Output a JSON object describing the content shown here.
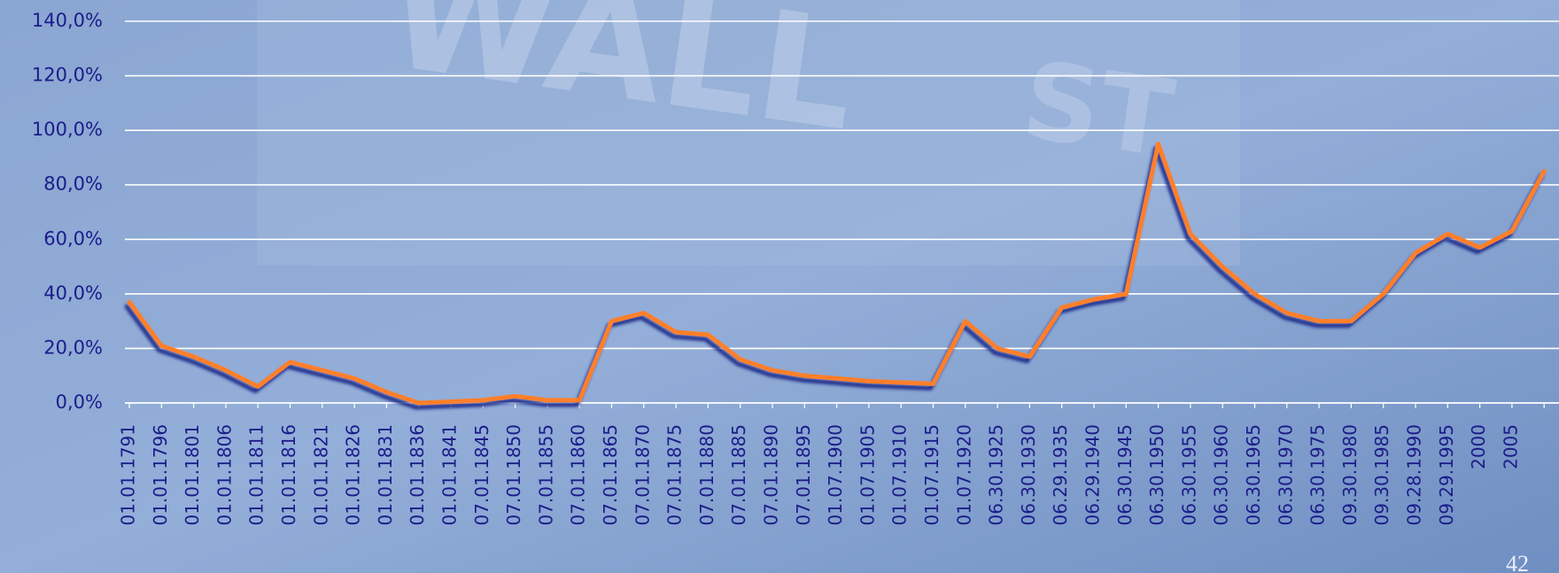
{
  "chart_data": {
    "type": "line",
    "categories": [
      "01.01.1791",
      "01.01.1796",
      "01.01.1801",
      "01.01.1806",
      "01.01.1811",
      "01.01.1816",
      "01.01.1821",
      "01.01.1826",
      "01.01.1831",
      "01.01.1836",
      "01.01.1841",
      "07.01.1845",
      "07.01.1850",
      "07.01.1855",
      "07.01.1860",
      "07.01.1865",
      "07.01.1870",
      "07.01.1875",
      "07.01.1880",
      "07.01.1885",
      "07.01.1890",
      "07.01.1895",
      "01.07.1900",
      "01.07.1905",
      "01.07.1910",
      "01.07.1915",
      "01.07.1920",
      "06.30.1925",
      "06.30.1930",
      "06.29.1935",
      "06.29.1940",
      "06.30.1945",
      "06.30.1950",
      "06.30.1955",
      "06.30.1960",
      "06.30.1965",
      "06.30.1970",
      "06.30.1975",
      "09.30.1980",
      "09.30.1985",
      "09.28.1990",
      "09.29.1995",
      "2000",
      "2005",
      null
    ],
    "series": [
      {
        "color": "#ff7f2a",
        "values": [
          37,
          21,
          17,
          12,
          6,
          15,
          12,
          9,
          4,
          0,
          0.5,
          1,
          2.5,
          1,
          1,
          30,
          33,
          26,
          25,
          16,
          12,
          10,
          9,
          8,
          7.5,
          7,
          30,
          20,
          17,
          35,
          38,
          40,
          95,
          62,
          50,
          40,
          33,
          30,
          30,
          40,
          55,
          62,
          57,
          63,
          85
        ]
      }
    ],
    "ylim": [
      0,
      140
    ],
    "yticks": [
      {
        "value": 0,
        "label": "0,0%"
      },
      {
        "value": 20,
        "label": "20,0%"
      },
      {
        "value": 40,
        "label": "40,0%"
      },
      {
        "value": 60,
        "label": "60,0%"
      },
      {
        "value": 80,
        "label": "80,0%"
      },
      {
        "value": 100,
        "label": "100,0%"
      },
      {
        "value": 120,
        "label": "120,0%"
      },
      {
        "value": 140,
        "label": "140,0%"
      }
    ],
    "grid": true
  },
  "page_number": "42"
}
